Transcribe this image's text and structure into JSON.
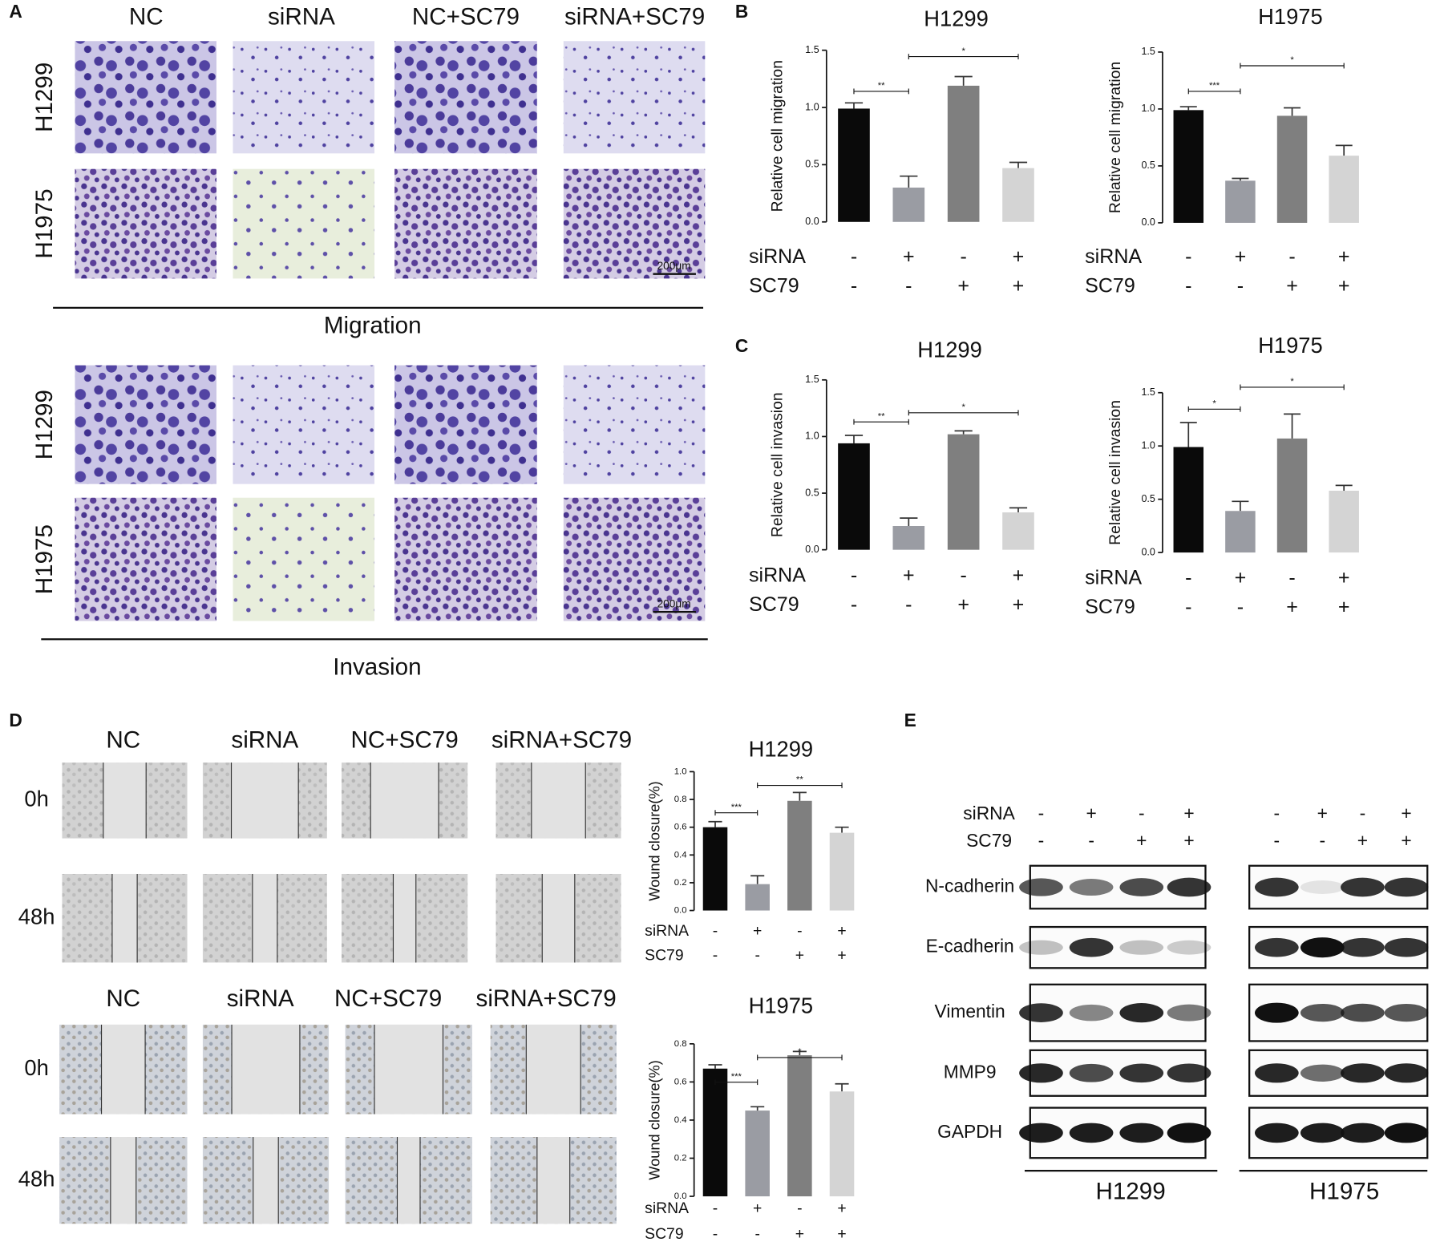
{
  "panel_labels": [
    "A",
    "B",
    "C",
    "D",
    "E"
  ],
  "transwell": {
    "columns": [
      "NC",
      "siRNA",
      "NC+SC79",
      "siRNA+SC79"
    ],
    "rows": [
      "H1299",
      "H1975",
      "H1299",
      "H1975"
    ],
    "scale_bar": "200μm",
    "captions": [
      "Migration",
      "Invasion"
    ]
  },
  "wound": {
    "columns": [
      "NC",
      "siRNA",
      "NC+SC79",
      "siRNA+SC79"
    ],
    "times": [
      "0h",
      "48h"
    ]
  },
  "western": {
    "conditions": [
      {
        "label": "siRNA",
        "signs": [
          "-",
          "+",
          "-",
          "+"
        ]
      },
      {
        "label": "SC79",
        "signs": [
          "-",
          "-",
          "+",
          "+"
        ]
      }
    ],
    "proteins": [
      "N-cadherin",
      "E-cadherin",
      "Vimentin",
      "MMP9",
      "GAPDH"
    ],
    "cell_lines": [
      "H1299",
      "H1975"
    ]
  },
  "chart_data": [
    {
      "type": "bar",
      "title": "H1299",
      "y_label": "Relative cell migration",
      "values": [
        0.99,
        0.3,
        1.19,
        0.47
      ],
      "errors": [
        0.05,
        0.1,
        0.08,
        0.05
      ],
      "colors": [
        "#0a0a0a",
        "#9a9ca3",
        "#7f7f7f",
        "#d4d4d4"
      ],
      "ylim": [
        0,
        1.5
      ],
      "yticks": [
        {
          "value": 0,
          "label": "0.0"
        },
        {
          "value": 0.5,
          "label": "0.5"
        },
        {
          "value": 1,
          "label": "1.0"
        },
        {
          "value": 1.5,
          "label": "1.5"
        }
      ],
      "significance": [
        "**",
        "*"
      ],
      "conditions": [
        {
          "label": "siRNA",
          "signs": [
            "-",
            "+",
            "-",
            "+"
          ]
        },
        {
          "label": "SC79",
          "signs": [
            "-",
            "-",
            "+",
            "+"
          ]
        }
      ]
    },
    {
      "type": "bar",
      "title": "H1975",
      "y_label": "Relative cell migration",
      "values": [
        0.99,
        0.37,
        0.94,
        0.59
      ],
      "errors": [
        0.03,
        0.02,
        0.07,
        0.09
      ],
      "colors": [
        "#0a0a0a",
        "#9a9ca3",
        "#7f7f7f",
        "#d4d4d4"
      ],
      "ylim": [
        0,
        1.5
      ],
      "yticks": [
        {
          "value": 0,
          "label": "0.0"
        },
        {
          "value": 0.5,
          "label": "0.5"
        },
        {
          "value": 1,
          "label": "1.0"
        },
        {
          "value": 1.5,
          "label": "1.5"
        }
      ],
      "significance": [
        "***",
        "*"
      ],
      "conditions": [
        {
          "label": "siRNA",
          "signs": [
            "-",
            "+",
            "-",
            "+"
          ]
        },
        {
          "label": "SC79",
          "signs": [
            "-",
            "-",
            "+",
            "+"
          ]
        }
      ]
    },
    {
      "type": "bar",
      "title": "H1299",
      "y_label": "Relative cell invasion",
      "values": [
        0.94,
        0.21,
        1.02,
        0.33
      ],
      "errors": [
        0.07,
        0.07,
        0.03,
        0.04
      ],
      "colors": [
        "#0a0a0a",
        "#9a9ca3",
        "#7f7f7f",
        "#d4d4d4"
      ],
      "ylim": [
        0,
        1.5
      ],
      "yticks": [
        {
          "value": 0,
          "label": "0.0"
        },
        {
          "value": 0.5,
          "label": "0.5"
        },
        {
          "value": 1,
          "label": "1.0"
        },
        {
          "value": 1.5,
          "label": "1.5"
        }
      ],
      "significance": [
        "**",
        "*"
      ],
      "conditions": [
        {
          "label": "siRNA",
          "signs": [
            "-",
            "+",
            "-",
            "+"
          ]
        },
        {
          "label": "SC79",
          "signs": [
            "-",
            "-",
            "+",
            "+"
          ]
        }
      ]
    },
    {
      "type": "bar",
      "title": "H1975",
      "y_label": "Relative cell invasion",
      "values": [
        0.99,
        0.39,
        1.07,
        0.58
      ],
      "errors": [
        0.23,
        0.09,
        0.23,
        0.05
      ],
      "colors": [
        "#0a0a0a",
        "#9a9ca3",
        "#7f7f7f",
        "#d4d4d4"
      ],
      "ylim": [
        0,
        1.5
      ],
      "yticks": [
        {
          "value": 0,
          "label": "0.0"
        },
        {
          "value": 0.5,
          "label": "0.5"
        },
        {
          "value": 1,
          "label": "1.0"
        },
        {
          "value": 1.5,
          "label": "1.5"
        }
      ],
      "significance": [
        "*",
        "*"
      ],
      "conditions": [
        {
          "label": "siRNA",
          "signs": [
            "-",
            "+",
            "-",
            "+"
          ]
        },
        {
          "label": "SC79",
          "signs": [
            "-",
            "-",
            "+",
            "+"
          ]
        }
      ]
    },
    {
      "type": "bar",
      "title": "H1299",
      "y_label": "Wound closure(%)",
      "values": [
        0.6,
        0.19,
        0.79,
        0.56
      ],
      "errors": [
        0.04,
        0.06,
        0.06,
        0.04
      ],
      "colors": [
        "#0a0a0a",
        "#9a9ca3",
        "#7f7f7f",
        "#d4d4d4"
      ],
      "ylim": [
        0,
        1
      ],
      "yticks": [
        {
          "value": 0,
          "label": "0.0"
        },
        {
          "value": 0.2,
          "label": "0.2"
        },
        {
          "value": 0.4,
          "label": "0.4"
        },
        {
          "value": 0.6,
          "label": "0.6"
        },
        {
          "value": 0.8,
          "label": "0.8"
        },
        {
          "value": 1,
          "label": "1.0"
        }
      ],
      "significance": [
        "***",
        "**"
      ],
      "conditions": [
        {
          "label": "siRNA",
          "signs": [
            "-",
            "+",
            "-",
            "+"
          ]
        },
        {
          "label": "SC79",
          "signs": [
            "-",
            "-",
            "+",
            "+"
          ]
        }
      ]
    },
    {
      "type": "bar",
      "title": "H1975",
      "y_label": "Wound  closure(%)",
      "values": [
        0.67,
        0.45,
        0.74,
        0.55
      ],
      "errors": [
        0.02,
        0.02,
        0.02,
        0.04
      ],
      "colors": [
        "#0a0a0a",
        "#9a9ca3",
        "#7f7f7f",
        "#d4d4d4"
      ],
      "ylim": [
        0,
        0.8
      ],
      "yticks": [
        {
          "value": 0,
          "label": "0.0"
        },
        {
          "value": 0.2,
          "label": "0.2"
        },
        {
          "value": 0.4,
          "label": "0.4"
        },
        {
          "value": 0.6,
          "label": "0.6"
        },
        {
          "value": 0.8,
          "label": "0.8"
        }
      ],
      "significance": [
        "***",
        "*"
      ],
      "conditions": [
        {
          "label": "siRNA",
          "signs": [
            "-",
            "+",
            "-",
            "+"
          ]
        },
        {
          "label": "SC79",
          "signs": [
            "-",
            "-",
            "+",
            "+"
          ]
        }
      ]
    }
  ]
}
